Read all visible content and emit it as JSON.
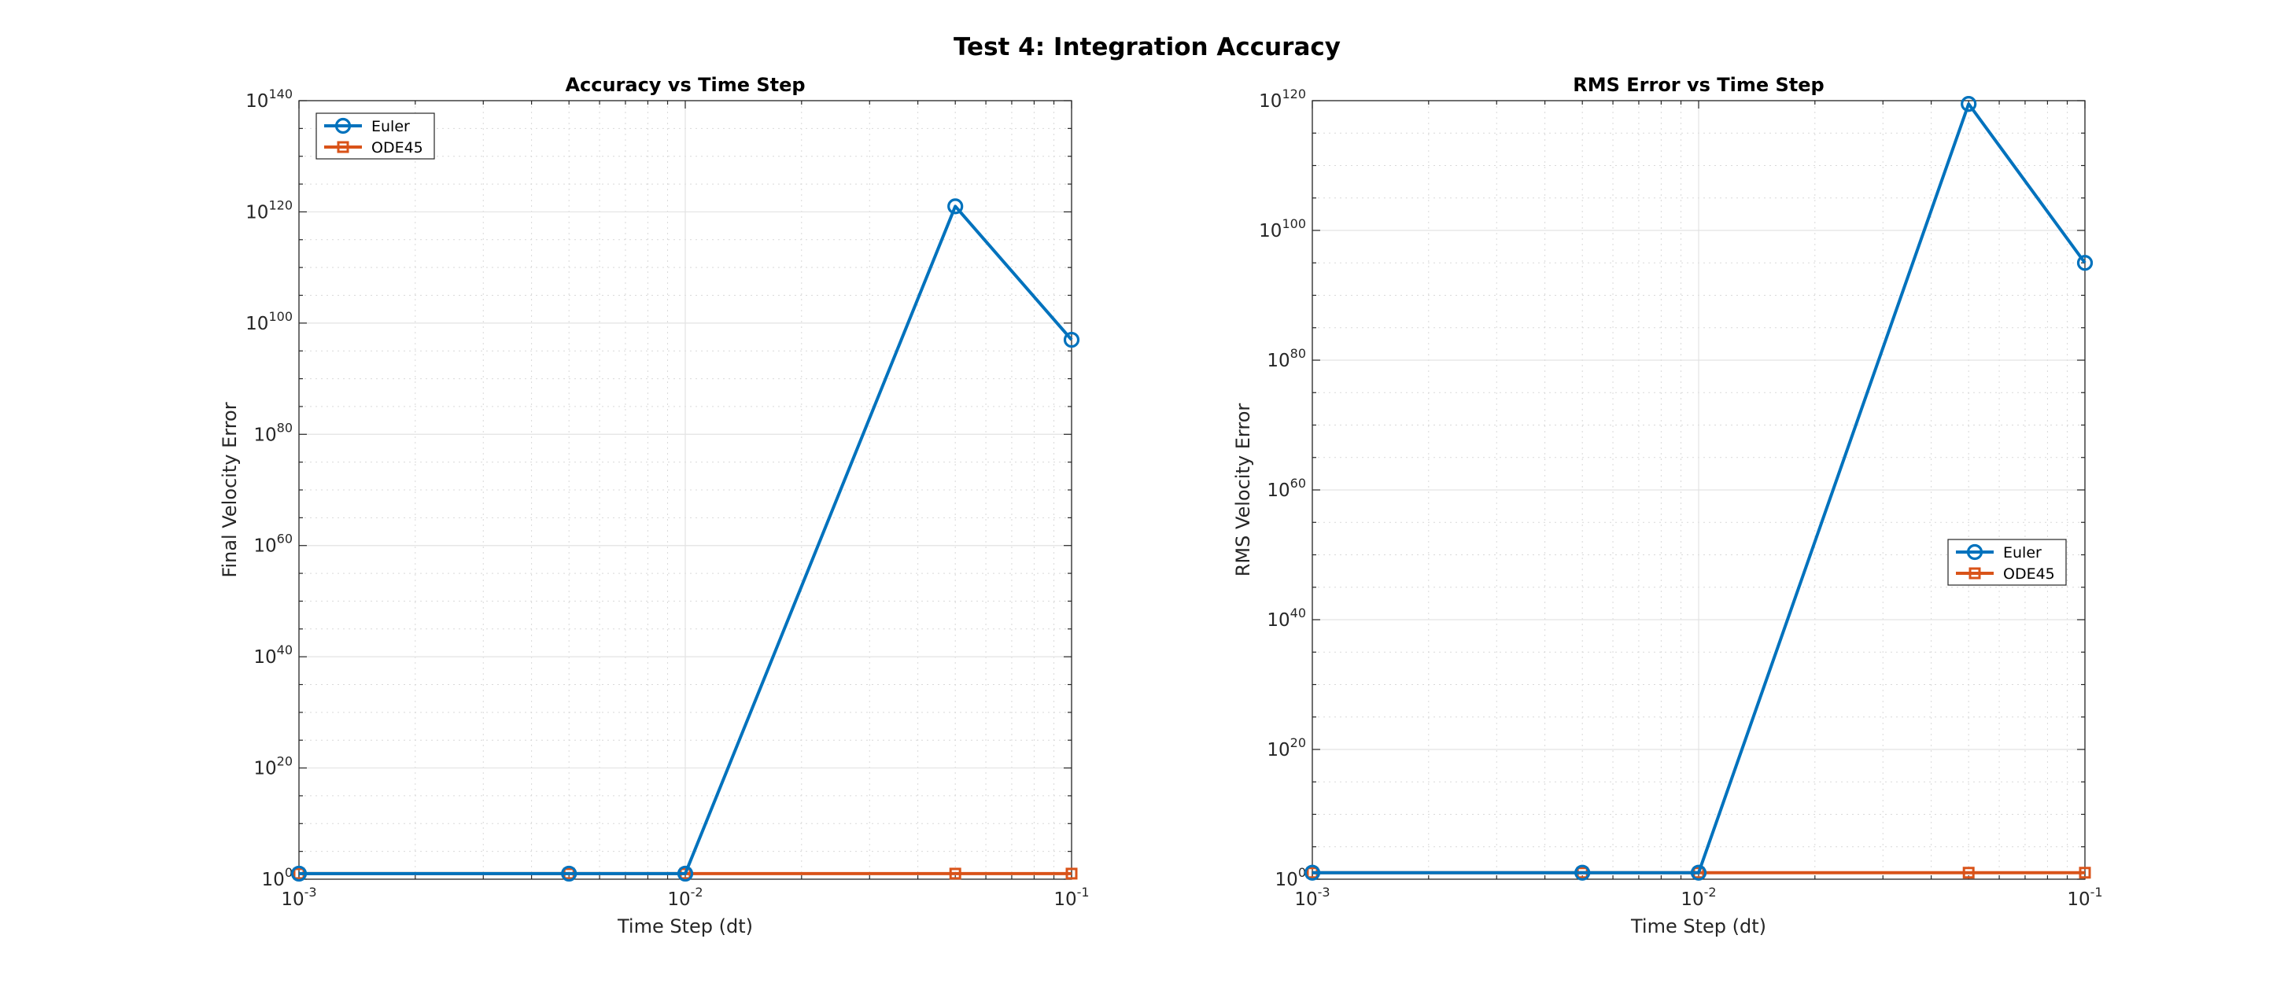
{
  "figure": {
    "title": "Test 4: Integration Accuracy"
  },
  "chart_data": [
    {
      "type": "line",
      "title": "Accuracy vs Time Step",
      "xlabel": "Time Step (dt)",
      "ylabel": "Final Velocity Error",
      "xscale": "log",
      "yscale": "log",
      "xlim": [
        0.001,
        0.1
      ],
      "ylim_exp": [
        0,
        140
      ],
      "xticks": [
        {
          "base": "10",
          "exp": "-3"
        },
        {
          "base": "10",
          "exp": "-2"
        },
        {
          "base": "10",
          "exp": "-1"
        }
      ],
      "yticks": [
        {
          "base": "10",
          "exp": "0"
        },
        {
          "base": "10",
          "exp": "20"
        },
        {
          "base": "10",
          "exp": "40"
        },
        {
          "base": "10",
          "exp": "60"
        },
        {
          "base": "10",
          "exp": "80"
        },
        {
          "base": "10",
          "exp": "100"
        },
        {
          "base": "10",
          "exp": "120"
        },
        {
          "base": "10",
          "exp": "140"
        }
      ],
      "grid": true,
      "legend_position": "top-left",
      "x": [
        0.001,
        0.005,
        0.01,
        0.05,
        0.1
      ],
      "series": [
        {
          "name": "Euler",
          "color": "#0072BD",
          "marker": "circle",
          "y_log10": [
            1,
            1,
            1,
            121,
            97
          ]
        },
        {
          "name": "ODE45",
          "color": "#D95319",
          "marker": "square",
          "y_log10": [
            1,
            1,
            1,
            1,
            1
          ]
        }
      ]
    },
    {
      "type": "line",
      "title": "RMS Error vs Time Step",
      "xlabel": "Time Step (dt)",
      "ylabel": "RMS Velocity Error",
      "xscale": "log",
      "yscale": "log",
      "xlim": [
        0.001,
        0.1
      ],
      "ylim_exp": [
        0,
        120
      ],
      "xticks": [
        {
          "base": "10",
          "exp": "-3"
        },
        {
          "base": "10",
          "exp": "-2"
        },
        {
          "base": "10",
          "exp": "-1"
        }
      ],
      "yticks": [
        {
          "base": "10",
          "exp": "0"
        },
        {
          "base": "10",
          "exp": "20"
        },
        {
          "base": "10",
          "exp": "40"
        },
        {
          "base": "10",
          "exp": "60"
        },
        {
          "base": "10",
          "exp": "80"
        },
        {
          "base": "10",
          "exp": "100"
        },
        {
          "base": "10",
          "exp": "120"
        }
      ],
      "grid": true,
      "legend_position": "center-right",
      "x": [
        0.001,
        0.005,
        0.01,
        0.05,
        0.1
      ],
      "series": [
        {
          "name": "Euler",
          "color": "#0072BD",
          "marker": "circle",
          "y_log10": [
            1,
            1,
            1,
            119.5,
            95
          ]
        },
        {
          "name": "ODE45",
          "color": "#D95319",
          "marker": "square",
          "y_log10": [
            1,
            1,
            1,
            1,
            1
          ]
        }
      ]
    }
  ]
}
